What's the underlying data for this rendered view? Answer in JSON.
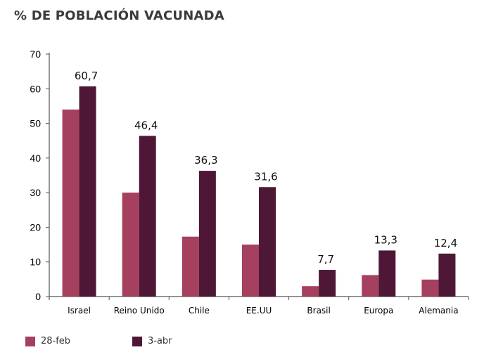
{
  "title": "% DE POBLACIÓN VACUNADA",
  "colors": {
    "series1": "#a5405e",
    "series2": "#4e1736"
  },
  "chart_data": {
    "type": "bar",
    "title": "% DE POBLACIÓN VACUNADA",
    "categories": [
      "Israel",
      "Reino Unido",
      "Chile",
      "EE.UU",
      "Brasil",
      "Europa",
      "Alemania"
    ],
    "series": [
      {
        "name": "28-feb",
        "values": [
          54,
          30,
          17.3,
          15,
          3,
          6.2,
          4.9
        ]
      },
      {
        "name": "3-abr",
        "values": [
          60.7,
          46.4,
          36.3,
          31.6,
          7.7,
          13.3,
          12.4
        ]
      }
    ],
    "data_labels": [
      "60,7",
      "46,4",
      "36,3",
      "31,6",
      "7,7",
      "13,3",
      "12,4"
    ],
    "yticks": [
      "0",
      "10",
      "20",
      "30",
      "40",
      "50",
      "60",
      "70"
    ],
    "ylim": [
      0,
      70
    ],
    "grid": false,
    "legend_position": "bottom-left"
  }
}
